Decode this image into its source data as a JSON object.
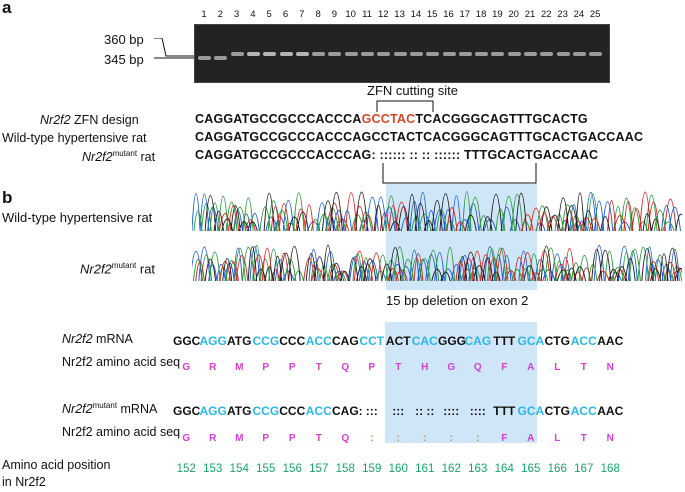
{
  "panel_a": {
    "label": "a",
    "lanes": [
      "1",
      "2",
      "3",
      "4",
      "5",
      "6",
      "7",
      "8",
      "9",
      "10",
      "11",
      "12",
      "13",
      "14",
      "15",
      "16",
      "17",
      "18",
      "19",
      "20",
      "21",
      "22",
      "23",
      "24",
      "25"
    ],
    "marker_360": "360 bp",
    "marker_345": "345 bp",
    "zfn_site": "ZFN cutting site",
    "rows": [
      {
        "label_italic": "Nr2f2",
        "label_rest": " ZFN design",
        "seq_pre": "CAGGATGCCGCCCACCCA",
        "seq_red": "GCCTAC",
        "seq_post": "TCACGGGCAGTTTGCACTG"
      },
      {
        "label_plain": "Wild-type hypertensive rat",
        "seq": "CAGGATGCCGCCCACCCAGCCTACTCACGGGCAGTTTGCACTGACCAAC"
      },
      {
        "label_italic": "Nr2f2",
        "label_sup": "mutant",
        "label_rest": " rat",
        "seq": "CAGGATGCCGCCCACCCAG: :::::: :: :: :::::: TTTGCACTGACCAAC"
      }
    ]
  },
  "panel_b": {
    "label": "b",
    "trace_wt_label": "Wild-type hypertensive rat",
    "trace_mut_italic": "Nr2f2",
    "trace_mut_sup": "mutant",
    "trace_mut_rest": " rat",
    "deletion_note": "15 bp deletion on exon 2",
    "mrna_label_italic": "Nr2f2",
    "mrna_label_rest": " mRNA",
    "aa_label": "Nr2f2 amino acid seq",
    "mut_mrna_label_italic": "Nr2f2",
    "mut_mrna_label_sup": "mutant",
    "mut_mrna_label_rest": " mRNA",
    "pos_label_line1": "Amino acid position",
    "pos_label_line2": "in Nr2f2",
    "wt_codons": [
      {
        "t": "GGC",
        "c": "black"
      },
      {
        "t": "AGG",
        "c": "blue"
      },
      {
        "t": "ATG",
        "c": "black"
      },
      {
        "t": "CCG",
        "c": "blue"
      },
      {
        "t": "CCC",
        "c": "black"
      },
      {
        "t": "ACC",
        "c": "blue"
      },
      {
        "t": "CAG",
        "c": "black"
      },
      {
        "t": "CCT",
        "c": "blue"
      },
      {
        "t": "ACT",
        "c": "black"
      },
      {
        "t": "CAC",
        "c": "blue"
      },
      {
        "t": "GGG",
        "c": "black"
      },
      {
        "t": "CAG",
        "c": "blue"
      },
      {
        "t": "TTT",
        "c": "black"
      },
      {
        "t": "GCA",
        "c": "blue"
      },
      {
        "t": "CTG",
        "c": "black"
      },
      {
        "t": "ACC",
        "c": "blue"
      },
      {
        "t": "AAC",
        "c": "black"
      }
    ],
    "wt_aa": [
      "G",
      "R",
      "M",
      "P",
      "P",
      "T",
      "Q",
      "P",
      "T",
      "H",
      "G",
      "Q",
      "F",
      "A",
      "L",
      "T",
      "N"
    ],
    "mut_codons": [
      {
        "t": "GGC",
        "c": "black"
      },
      {
        "t": "AGG",
        "c": "blue"
      },
      {
        "t": "ATG",
        "c": "black"
      },
      {
        "t": "CCG",
        "c": "blue"
      },
      {
        "t": "CCC",
        "c": "black"
      },
      {
        "t": "ACC",
        "c": "blue"
      },
      {
        "t": "CAG:",
        "c": "black"
      },
      {
        "t": ":::",
        "c": "black"
      },
      {
        "t": ":::",
        "c": "black"
      },
      {
        "t": ":: ::",
        "c": "black"
      },
      {
        "t": "::::",
        "c": "black"
      },
      {
        "t": "::::",
        "c": "black"
      },
      {
        "t": "TTT",
        "c": "black"
      },
      {
        "t": "GCA",
        "c": "blue"
      },
      {
        "t": "CTG",
        "c": "black"
      },
      {
        "t": "ACC",
        "c": "blue"
      },
      {
        "t": "AAC",
        "c": "black"
      }
    ],
    "mut_aa": [
      "G",
      "R",
      "M",
      "P",
      "P",
      "T",
      "Q",
      ":",
      ":",
      ":",
      ":",
      ":",
      "F",
      "A",
      "L",
      "T",
      "N"
    ],
    "positions": [
      "152",
      "153",
      "154",
      "155",
      "156",
      "157",
      "158",
      "159",
      "160",
      "161",
      "162",
      "163",
      "164",
      "165",
      "166",
      "167",
      "168"
    ]
  }
}
